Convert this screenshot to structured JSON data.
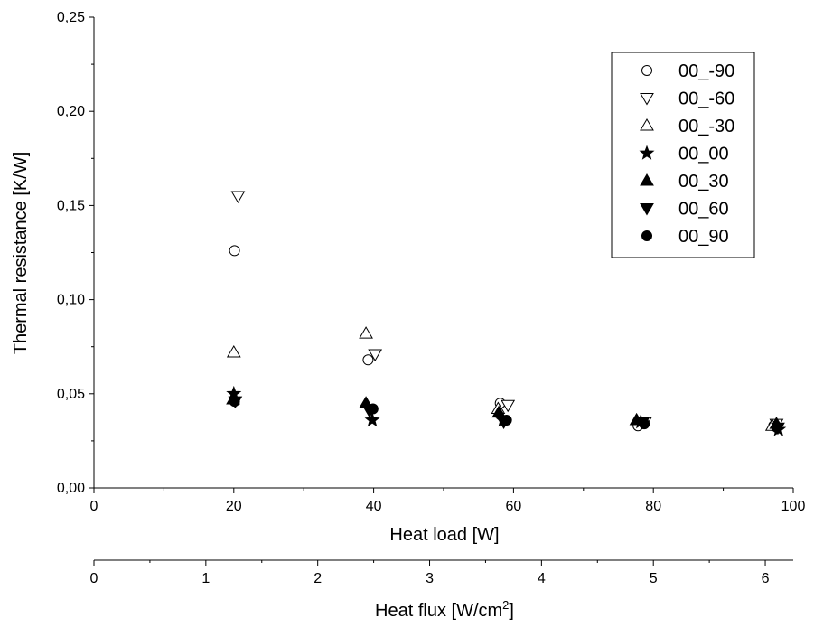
{
  "chart_data": {
    "type": "scatter",
    "title": "",
    "xlabel": "Heat load [W]",
    "ylabel": "Thermal resistance [K/W]",
    "xlim": [
      0,
      100
    ],
    "ylim": [
      0,
      0.25
    ],
    "xticks": [
      0,
      20,
      40,
      60,
      80,
      100
    ],
    "xtick_labels": [
      "0",
      "20",
      "40",
      "60",
      "80",
      "100"
    ],
    "yticks": [
      0,
      0.05,
      0.1,
      0.15,
      0.2,
      0.25
    ],
    "ytick_labels": [
      "0,00",
      "0,05",
      "0,10",
      "0,15",
      "0,20",
      "0,25"
    ],
    "secondary_x_axis": {
      "label_prefix": "Heat flux [W/cm",
      "label_superscript": "2",
      "label_suffix": "]",
      "xlim": [
        0,
        6.25
      ],
      "xticks": [
        0,
        1,
        2,
        3,
        4,
        5,
        6
      ],
      "xtick_labels": [
        "0",
        "1",
        "2",
        "3",
        "4",
        "5",
        "6"
      ]
    },
    "grid": false,
    "legend_position": "top-right",
    "series": [
      {
        "name": "00_-90",
        "marker": "circle-open",
        "x": [
          20.1,
          39.2,
          58.1,
          77.8,
          97.2
        ],
        "y": [
          0.126,
          0.068,
          0.045,
          0.033,
          0.033
        ]
      },
      {
        "name": "00_-60",
        "marker": "triangle-down-open",
        "x": [
          20.6,
          40.2,
          59.2,
          78.8,
          97.6
        ],
        "y": [
          0.155,
          0.071,
          0.044,
          0.035,
          0.034
        ]
      },
      {
        "name": "00_-30",
        "marker": "triangle-up-open",
        "x": [
          20.0,
          38.9,
          57.8,
          77.6,
          97.0
        ],
        "y": [
          0.072,
          0.082,
          0.042,
          0.036,
          0.033
        ]
      },
      {
        "name": "00_00",
        "marker": "star-filled",
        "x": [
          20.0,
          39.8,
          58.5,
          78.2,
          97.9
        ],
        "y": [
          0.05,
          0.036,
          0.036,
          0.035,
          0.031
        ]
      },
      {
        "name": "00_30",
        "marker": "triangle-up-filled",
        "x": [
          19.9,
          38.9,
          57.9,
          77.6,
          97.6
        ],
        "y": [
          0.047,
          0.045,
          0.04,
          0.036,
          0.034
        ]
      },
      {
        "name": "00_60",
        "marker": "triangle-down-filled",
        "x": [
          20.2,
          39.4,
          58.6,
          78.5,
          97.8
        ],
        "y": [
          0.046,
          0.041,
          0.035,
          0.035,
          0.032
        ]
      },
      {
        "name": "00_90",
        "marker": "circle-filled",
        "x": [
          20.1,
          39.9,
          59.0,
          78.7,
          97.7
        ],
        "y": [
          0.046,
          0.042,
          0.036,
          0.034,
          0.032
        ]
      }
    ]
  }
}
